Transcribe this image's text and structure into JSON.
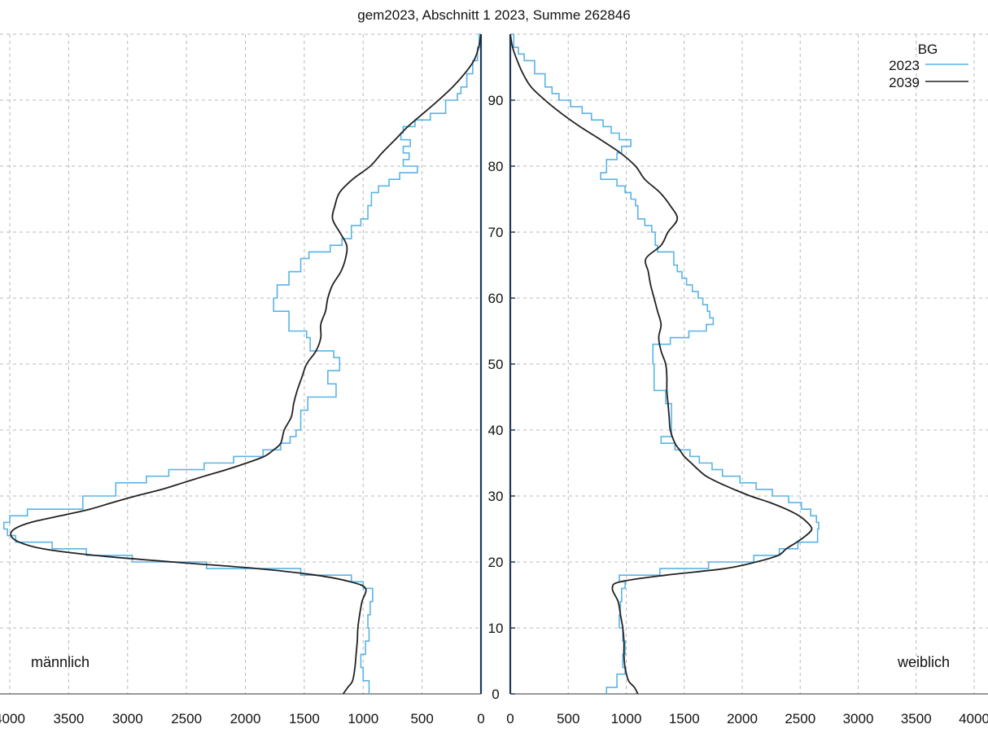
{
  "chart_data": {
    "type": "line",
    "title": "gem2023, Abschnitt 1 2023, Summe 262846",
    "left_label": "männlich",
    "right_label": "weiblich",
    "legend": {
      "title": "BG",
      "placement": "top-right"
    },
    "y_axis": {
      "label": "",
      "range": [
        0,
        100
      ],
      "ticks": [
        0,
        10,
        20,
        30,
        40,
        50,
        60,
        70,
        80,
        90
      ]
    },
    "x_axis_left": {
      "range": [
        0,
        4000
      ],
      "ticks": [
        4000,
        3500,
        3000,
        2500,
        2000,
        1500,
        1000,
        500,
        0
      ],
      "tick_labels": [
        "4000",
        "3500",
        "3000",
        "2500",
        "2000",
        "1500",
        "1000",
        "500",
        "0"
      ]
    },
    "x_axis_right": {
      "range": [
        0,
        4000
      ],
      "ticks": [
        0,
        500,
        1000,
        1500,
        2000,
        2500,
        3000,
        3500,
        4000
      ],
      "tick_labels": [
        "0",
        "500",
        "1000",
        "1500",
        "2000",
        "2500",
        "3000",
        "3500",
        "4000"
      ]
    },
    "grid": true,
    "series": [
      {
        "name": "2023",
        "color": "#5ab4e5",
        "style": "step",
        "male": [
          [
            0,
            950
          ],
          [
            2,
            1000
          ],
          [
            4,
            1020
          ],
          [
            6,
            980
          ],
          [
            8,
            950
          ],
          [
            10,
            960
          ],
          [
            12,
            940
          ],
          [
            14,
            920
          ],
          [
            16,
            1000
          ],
          [
            17,
            1100
          ],
          [
            18,
            1530
          ],
          [
            19,
            2330
          ],
          [
            20,
            2960
          ],
          [
            21,
            3350
          ],
          [
            22,
            3640
          ],
          [
            23,
            3950
          ],
          [
            24,
            4020
          ],
          [
            25,
            4050
          ],
          [
            26,
            4000
          ],
          [
            27,
            3850
          ],
          [
            28,
            3380
          ],
          [
            30,
            3100
          ],
          [
            32,
            2840
          ],
          [
            33,
            2650
          ],
          [
            34,
            2350
          ],
          [
            35,
            2100
          ],
          [
            36,
            1850
          ],
          [
            37,
            1700
          ],
          [
            38,
            1620
          ],
          [
            39,
            1570
          ],
          [
            40,
            1530
          ],
          [
            43,
            1470
          ],
          [
            45,
            1230
          ],
          [
            47,
            1300
          ],
          [
            49,
            1200
          ],
          [
            51,
            1250
          ],
          [
            52,
            1450
          ],
          [
            54,
            1480
          ],
          [
            55,
            1630
          ],
          [
            58,
            1760
          ],
          [
            60,
            1730
          ],
          [
            62,
            1630
          ],
          [
            64,
            1530
          ],
          [
            66,
            1460
          ],
          [
            67,
            1280
          ],
          [
            68,
            1180
          ],
          [
            69,
            1100
          ],
          [
            71,
            1020
          ],
          [
            72,
            960
          ],
          [
            74,
            930
          ],
          [
            76,
            870
          ],
          [
            77,
            780
          ],
          [
            78,
            690
          ],
          [
            79,
            540
          ],
          [
            80,
            660
          ],
          [
            81,
            610
          ],
          [
            82,
            660
          ],
          [
            83,
            600
          ],
          [
            84,
            680
          ],
          [
            85,
            660
          ],
          [
            86,
            560
          ],
          [
            87,
            430
          ],
          [
            88,
            300
          ],
          [
            90,
            200
          ],
          [
            91,
            170
          ],
          [
            92,
            120
          ],
          [
            94,
            70
          ],
          [
            96,
            30
          ],
          [
            98,
            15
          ],
          [
            100,
            0
          ]
        ],
        "female": [
          [
            0,
            830
          ],
          [
            1,
            920
          ],
          [
            3,
            990
          ],
          [
            4,
            970
          ],
          [
            6,
            990
          ],
          [
            8,
            970
          ],
          [
            10,
            940
          ],
          [
            12,
            950
          ],
          [
            14,
            960
          ],
          [
            16,
            990
          ],
          [
            17,
            940
          ],
          [
            18,
            1290
          ],
          [
            19,
            1710
          ],
          [
            20,
            2100
          ],
          [
            21,
            2320
          ],
          [
            22,
            2480
          ],
          [
            23,
            2650
          ],
          [
            25,
            2660
          ],
          [
            26,
            2640
          ],
          [
            27,
            2590
          ],
          [
            28,
            2510
          ],
          [
            29,
            2400
          ],
          [
            30,
            2260
          ],
          [
            31,
            2120
          ],
          [
            32,
            1980
          ],
          [
            33,
            1830
          ],
          [
            34,
            1740
          ],
          [
            35,
            1630
          ],
          [
            36,
            1550
          ],
          [
            37,
            1420
          ],
          [
            38,
            1300
          ],
          [
            39,
            1390
          ],
          [
            42,
            1390
          ],
          [
            44,
            1340
          ],
          [
            46,
            1240
          ],
          [
            48,
            1240
          ],
          [
            50,
            1230
          ],
          [
            52,
            1230
          ],
          [
            53,
            1380
          ],
          [
            54,
            1540
          ],
          [
            55,
            1690
          ],
          [
            56,
            1750
          ],
          [
            57,
            1720
          ],
          [
            58,
            1700
          ],
          [
            59,
            1660
          ],
          [
            60,
            1620
          ],
          [
            61,
            1570
          ],
          [
            62,
            1520
          ],
          [
            63,
            1480
          ],
          [
            64,
            1440
          ],
          [
            65,
            1410
          ],
          [
            67,
            1270
          ],
          [
            68,
            1250
          ],
          [
            70,
            1220
          ],
          [
            71,
            1160
          ],
          [
            72,
            1100
          ],
          [
            74,
            1080
          ],
          [
            75,
            1040
          ],
          [
            76,
            990
          ],
          [
            77,
            920
          ],
          [
            78,
            780
          ],
          [
            79,
            830
          ],
          [
            81,
            920
          ],
          [
            82,
            960
          ],
          [
            83,
            1040
          ],
          [
            84,
            940
          ],
          [
            85,
            870
          ],
          [
            86,
            800
          ],
          [
            87,
            700
          ],
          [
            88,
            620
          ],
          [
            89,
            520
          ],
          [
            90,
            420
          ],
          [
            91,
            360
          ],
          [
            92,
            300
          ],
          [
            94,
            210
          ],
          [
            96,
            120
          ],
          [
            97,
            70
          ],
          [
            98,
            30
          ],
          [
            100,
            0
          ]
        ]
      },
      {
        "name": "2039",
        "color": "#222222",
        "style": "smooth",
        "male": [
          [
            0,
            1170
          ],
          [
            1,
            1130
          ],
          [
            2,
            1090
          ],
          [
            4,
            1070
          ],
          [
            6,
            1060
          ],
          [
            8,
            1050
          ],
          [
            10,
            1045
          ],
          [
            12,
            1030
          ],
          [
            14,
            1010
          ],
          [
            16,
            980
          ],
          [
            17,
            1110
          ],
          [
            18,
            1400
          ],
          [
            19,
            1900
          ],
          [
            20,
            2620
          ],
          [
            21,
            3280
          ],
          [
            22,
            3720
          ],
          [
            23,
            3920
          ],
          [
            24,
            3990
          ],
          [
            25,
            3960
          ],
          [
            26,
            3820
          ],
          [
            27,
            3570
          ],
          [
            28,
            3320
          ],
          [
            29,
            3130
          ],
          [
            30,
            2930
          ],
          [
            31,
            2710
          ],
          [
            32,
            2530
          ],
          [
            33,
            2350
          ],
          [
            34,
            2160
          ],
          [
            35,
            1990
          ],
          [
            36,
            1840
          ],
          [
            37,
            1760
          ],
          [
            38,
            1700
          ],
          [
            40,
            1670
          ],
          [
            42,
            1610
          ],
          [
            44,
            1590
          ],
          [
            46,
            1560
          ],
          [
            48,
            1520
          ],
          [
            50,
            1480
          ],
          [
            52,
            1400
          ],
          [
            54,
            1360
          ],
          [
            56,
            1360
          ],
          [
            58,
            1320
          ],
          [
            60,
            1300
          ],
          [
            62,
            1260
          ],
          [
            64,
            1190
          ],
          [
            66,
            1150
          ],
          [
            68,
            1140
          ],
          [
            70,
            1200
          ],
          [
            72,
            1260
          ],
          [
            74,
            1240
          ],
          [
            76,
            1200
          ],
          [
            78,
            1090
          ],
          [
            80,
            940
          ],
          [
            82,
            840
          ],
          [
            84,
            730
          ],
          [
            86,
            620
          ],
          [
            88,
            490
          ],
          [
            90,
            360
          ],
          [
            92,
            240
          ],
          [
            94,
            140
          ],
          [
            96,
            60
          ],
          [
            98,
            20
          ],
          [
            100,
            0
          ]
        ],
        "female": [
          [
            0,
            1100
          ],
          [
            1,
            1070
          ],
          [
            2,
            1020
          ],
          [
            4,
            990
          ],
          [
            6,
            980
          ],
          [
            8,
            980
          ],
          [
            10,
            970
          ],
          [
            12,
            950
          ],
          [
            14,
            930
          ],
          [
            16,
            880
          ],
          [
            17,
            950
          ],
          [
            18,
            1340
          ],
          [
            19,
            1850
          ],
          [
            20,
            2120
          ],
          [
            21,
            2310
          ],
          [
            22,
            2380
          ],
          [
            23,
            2470
          ],
          [
            24,
            2550
          ],
          [
            25,
            2600
          ],
          [
            26,
            2560
          ],
          [
            27,
            2490
          ],
          [
            28,
            2380
          ],
          [
            29,
            2240
          ],
          [
            30,
            2070
          ],
          [
            31,
            1930
          ],
          [
            32,
            1800
          ],
          [
            33,
            1690
          ],
          [
            34,
            1620
          ],
          [
            35,
            1560
          ],
          [
            36,
            1500
          ],
          [
            37,
            1460
          ],
          [
            38,
            1420
          ],
          [
            40,
            1380
          ],
          [
            42,
            1370
          ],
          [
            44,
            1360
          ],
          [
            46,
            1350
          ],
          [
            48,
            1350
          ],
          [
            50,
            1340
          ],
          [
            52,
            1300
          ],
          [
            54,
            1280
          ],
          [
            56,
            1300
          ],
          [
            58,
            1270
          ],
          [
            60,
            1240
          ],
          [
            62,
            1210
          ],
          [
            64,
            1190
          ],
          [
            66,
            1170
          ],
          [
            68,
            1300
          ],
          [
            70,
            1360
          ],
          [
            72,
            1440
          ],
          [
            74,
            1380
          ],
          [
            76,
            1290
          ],
          [
            78,
            1160
          ],
          [
            80,
            1080
          ],
          [
            82,
            950
          ],
          [
            84,
            780
          ],
          [
            86,
            600
          ],
          [
            88,
            440
          ],
          [
            90,
            300
          ],
          [
            92,
            180
          ],
          [
            94,
            110
          ],
          [
            96,
            60
          ],
          [
            98,
            20
          ],
          [
            100,
            0
          ]
        ]
      }
    ]
  }
}
